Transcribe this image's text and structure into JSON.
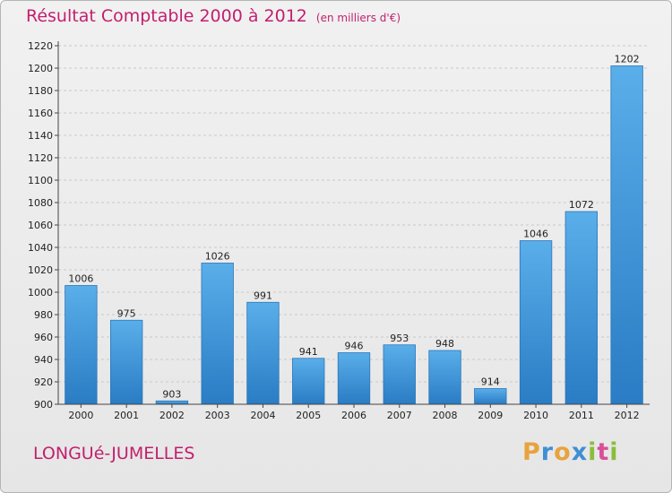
{
  "header": {
    "title": "Résultat Comptable 2000 à 2012",
    "subtitle": "(en milliers d'€)"
  },
  "footer": {
    "commune": "LONGUé-JUMELLES",
    "logo": {
      "letters": [
        "P",
        "r",
        "o",
        "x",
        "i",
        "t",
        "i"
      ],
      "colors": [
        "#e8a33d",
        "#3f8fd4",
        "#e8a33d",
        "#3f8fd4",
        "#8bbd3c",
        "#d94f98",
        "#8bbd3c"
      ]
    }
  },
  "chart_data": {
    "type": "bar",
    "categories": [
      "2000",
      "2001",
      "2002",
      "2003",
      "2004",
      "2005",
      "2006",
      "2007",
      "2008",
      "2009",
      "2010",
      "2011",
      "2012"
    ],
    "values": [
      1006,
      975,
      903,
      1026,
      991,
      941,
      946,
      953,
      948,
      914,
      1046,
      1072,
      1202
    ],
    "labels": [
      "1006",
      "975",
      "903",
      "1026",
      "991",
      "941",
      "946",
      "953",
      "948",
      "914",
      "1046",
      "1072",
      "1202"
    ],
    "ylim": [
      900,
      1220
    ],
    "yticks": [
      900,
      920,
      940,
      960,
      980,
      1000,
      1020,
      1040,
      1060,
      1080,
      1100,
      1120,
      1140,
      1160,
      1180,
      1200,
      1220
    ],
    "grid": true,
    "bar_color": "#4a9fe0"
  }
}
